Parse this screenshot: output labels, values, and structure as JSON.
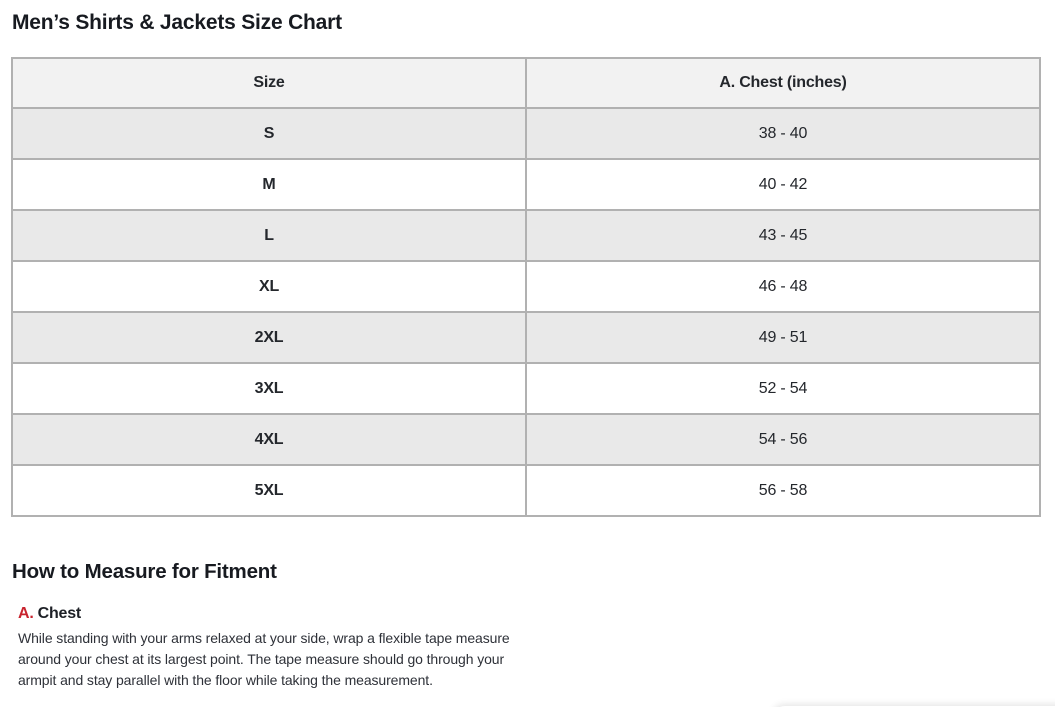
{
  "page_title": "Men’s Shirts & Jackets Size Chart",
  "size_chart": {
    "columns": [
      {
        "label": "Size"
      },
      {
        "label": "A. Chest (inches)"
      }
    ],
    "rows": [
      {
        "size": "S",
        "chest": "38 - 40"
      },
      {
        "size": "M",
        "chest": "40 - 42"
      },
      {
        "size": "L",
        "chest": "43 - 45"
      },
      {
        "size": "XL",
        "chest": "46 - 48"
      },
      {
        "size": "2XL",
        "chest": "49 - 51"
      },
      {
        "size": "3XL",
        "chest": "52 - 54"
      },
      {
        "size": "4XL",
        "chest": "54 - 56"
      },
      {
        "size": "5XL",
        "chest": "56 - 58"
      }
    ]
  },
  "measure": {
    "heading": "How to Measure for Fitment",
    "item": {
      "letter": "A.",
      "label": "Chest",
      "description": "While standing with your arms relaxed at your side, wrap a flexible tape measure around your chest at its largest point. The tape measure should go through your armpit and stay parallel with the floor while taking the measurement."
    }
  },
  "colors": {
    "accent_red": "#c8232e",
    "table_border": "#b1b1b1",
    "header_bg": "#f2f2f2",
    "stripe_bg": "#e9e9e9",
    "heading_text": "#171a20",
    "body_text": "#2e3138"
  }
}
